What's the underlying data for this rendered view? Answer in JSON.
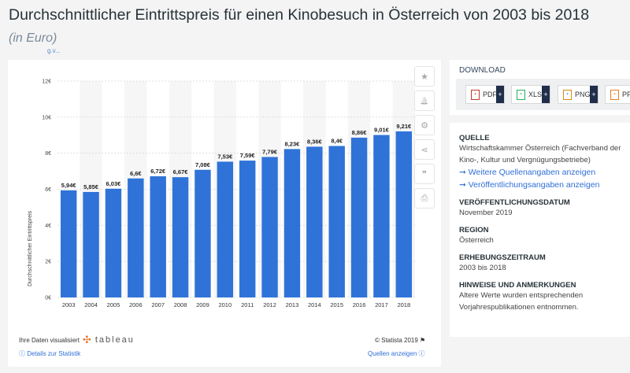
{
  "page": {
    "title": "Durchschnittlicher Eintrittspreis für einen Kinobesuch in Österreich von 2003 bis 2018",
    "subtitle": "(in Euro)",
    "breadcrumb_fragment": "g.v..."
  },
  "tools": {
    "star": "★",
    "bell": "🔔",
    "gear": "⚙",
    "share": "⋖",
    "quote": "❞",
    "print": "⎙"
  },
  "chart_data": {
    "type": "bar",
    "title": "Durchschnittlicher Eintrittspreis für einen Kinobesuch in Österreich von 2003 bis 2018",
    "subtitle": "(in Euro)",
    "xlabel": "",
    "ylabel": "Durchschnittlicher Eintrittspreis",
    "categories": [
      "2003",
      "2004",
      "2005",
      "2006",
      "2007",
      "2008",
      "2009",
      "2010",
      "2011",
      "2012",
      "2013",
      "2014",
      "2015",
      "2016",
      "2017",
      "2018"
    ],
    "values": [
      5.94,
      5.85,
      6.03,
      6.6,
      6.72,
      6.67,
      7.08,
      7.53,
      7.59,
      7.79,
      8.23,
      8.36,
      8.4,
      8.86,
      9.01,
      9.21
    ],
    "value_labels": [
      "5,94€",
      "5,85€",
      "6,03€",
      "6,6€",
      "6,72€",
      "6,67€",
      "7,08€",
      "7,53€",
      "7,59€",
      "7,79€",
      "8,23€",
      "8,36€",
      "8,4€",
      "8,86€",
      "9,01€",
      "9,21€"
    ],
    "ylim": [
      0,
      12
    ],
    "yticks": [
      0,
      2,
      4,
      6,
      8,
      10,
      12
    ],
    "ytick_labels": [
      "0€",
      "2€",
      "4€",
      "6€",
      "8€",
      "10€",
      "12€"
    ],
    "grid": true,
    "bar_color": "#2f73d8"
  },
  "footer": {
    "visualized_by": "Ihre Daten visualisiert",
    "tableau": "tableau",
    "copyright": "© Statista 2019 ⚑",
    "details_link": "ⓘ Details zur Statistik",
    "sources_link": "Quellen anzeigen ⓘ"
  },
  "download": {
    "title": "DOWNLOAD",
    "buttons": [
      {
        "label": "PDF",
        "plus": "+"
      },
      {
        "label": "XLS",
        "plus": "+"
      },
      {
        "label": "PNG",
        "plus": "+"
      },
      {
        "label": "PP",
        "plus": "+"
      }
    ]
  },
  "info": {
    "source_label": "QUELLE",
    "source_line1": "Wirtschaftskammer Österreich (Fachverband der",
    "source_line2": "Kino-, Kultur und Vergnügungsbetriebe)",
    "more_sources_link": "➞ Weitere Quellenangaben anzeigen",
    "publication_link": "➞ Veröffentlichungsangaben anzeigen",
    "pub_date_label": "VERÖFFENTLICHUNGSDATUM",
    "pub_date_value": "November 2019",
    "region_label": "REGION",
    "region_value": "Österreich",
    "period_label": "ERHEBUNGSZEITRAUM",
    "period_value": "2003 bis 2018",
    "notes_label": "HINWEISE UND ANMERKUNGEN",
    "notes_line1": "Altere Werte wurden entsprechenden",
    "notes_line2": "Vorjahrespublikationen entnommen."
  }
}
